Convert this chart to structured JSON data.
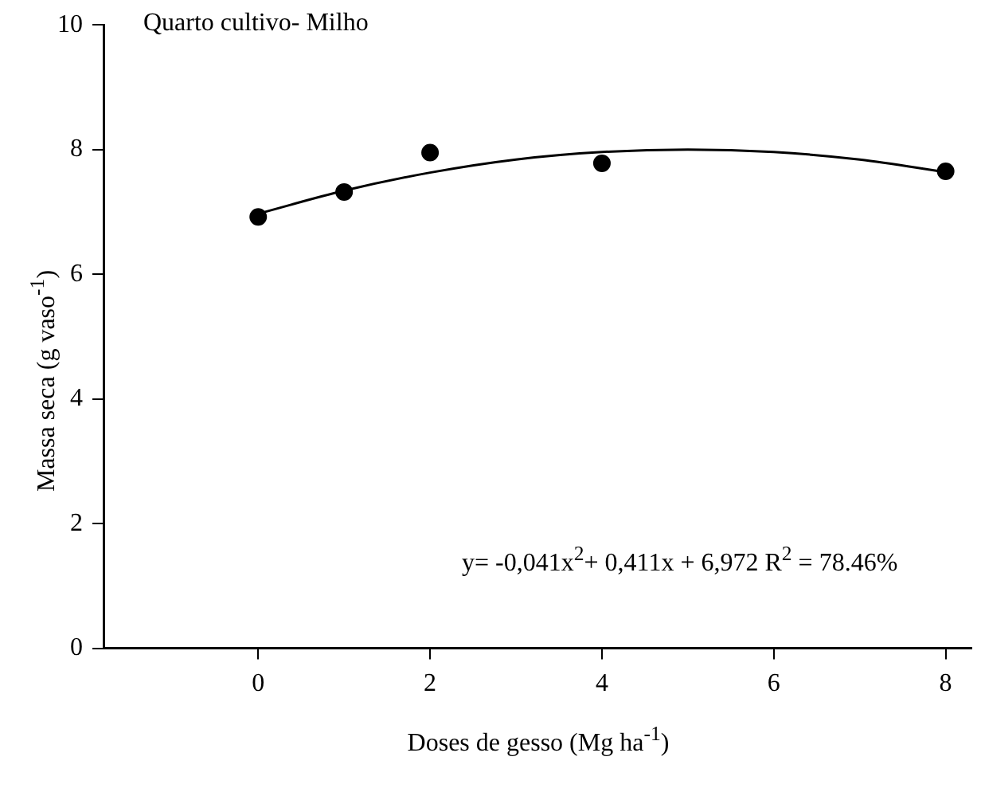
{
  "chart_data": {
    "type": "scatter",
    "title": "Quarto cultivo- Milho",
    "xlabel": "Doses de gesso (Mg ha$^{-1}$)",
    "ylabel": "Massa seca (g vaso$^{-1}$)",
    "xlim": [
      -1.8,
      8.3
    ],
    "ylim": [
      0,
      10
    ],
    "xticks": [
      0,
      2,
      4,
      6,
      8
    ],
    "yticks": [
      0,
      2,
      4,
      6,
      8,
      10
    ],
    "series": [
      {
        "color": "#000000",
        "marker": "circle",
        "x": [
          0,
          1,
          2,
          4,
          8
        ],
        "values": [
          6.92,
          7.32,
          7.95,
          7.78,
          7.65
        ]
      },
      {
        "type": "line",
        "color": "#000000",
        "marker": "none",
        "x": [
          0,
          1,
          2,
          3,
          4,
          5,
          6,
          7,
          8
        ],
        "values": [
          6.97,
          7.34,
          7.63,
          7.84,
          7.96,
          8.0,
          7.96,
          7.84,
          7.64
        ]
      }
    ],
    "annotations": [
      "y= -0,041x$^{2}$+ 0,411x + 6,972  R$^{2}$ = 78.46%"
    ]
  }
}
